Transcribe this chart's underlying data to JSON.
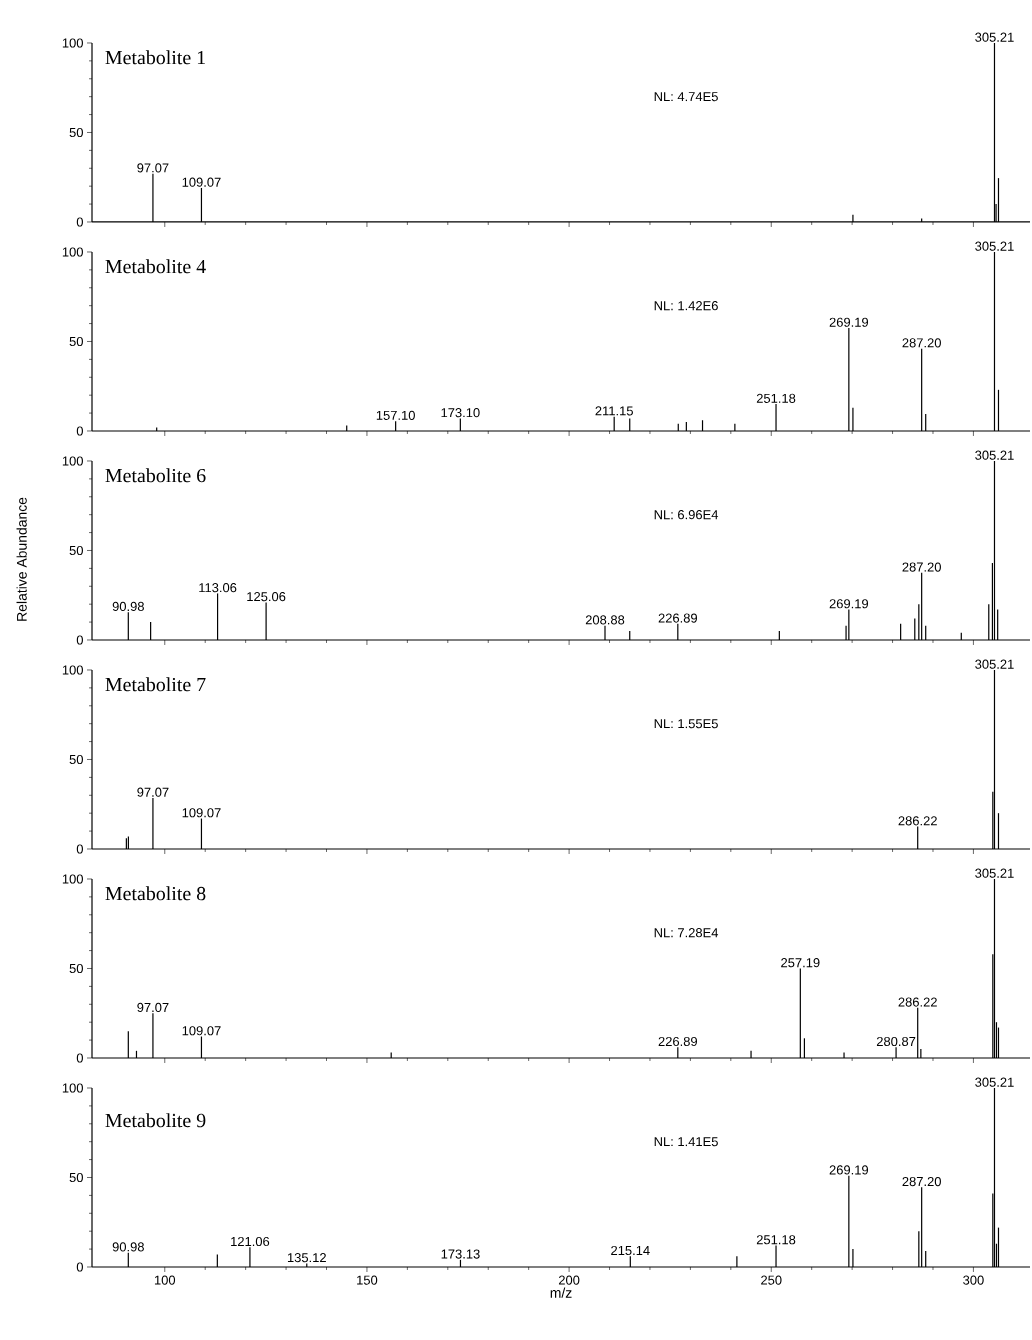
{
  "chart_data": [
    {
      "type": "bar",
      "title": "Metabolite 1",
      "color": "#000000",
      "xlim": [
        82,
        314
      ],
      "xticks": [
        100,
        150,
        200,
        250,
        300
      ],
      "ylim": [
        0,
        100
      ],
      "yticks": [
        0,
        50,
        100
      ],
      "tick_labels": "y",
      "x": [
        97.07,
        109.07,
        270.2,
        287.2,
        305.21,
        305.6,
        306.2
      ],
      "values": [
        27,
        19,
        4,
        2,
        100,
        10,
        24.5
      ],
      "annotations": [
        "NL: 4.74E5",
        {
          "text": "97.07",
          "x": 97.07,
          "y": 27
        },
        {
          "text": "109.07",
          "x": 109.07,
          "y": 19
        },
        {
          "text": "305.21",
          "x": 305.21,
          "y": 100
        }
      ]
    },
    {
      "type": "bar",
      "title": "Metabolite 4",
      "color": "#000000",
      "xlim": [
        82,
        314
      ],
      "xticks": [
        100,
        150,
        200,
        250,
        300
      ],
      "ylim": [
        0,
        100
      ],
      "yticks": [
        0,
        50,
        100
      ],
      "tick_labels": "y",
      "x": [
        98,
        145,
        157.1,
        173.1,
        211.15,
        215,
        227,
        229,
        233,
        241,
        251.18,
        269.19,
        270.2,
        287.2,
        288.2,
        305.21,
        306.2
      ],
      "values": [
        2,
        3,
        5.5,
        7,
        8,
        7,
        4,
        5,
        6,
        4,
        15,
        57.5,
        13,
        46,
        9.5,
        100,
        23
      ],
      "annotations": [
        "NL: 1.42E6",
        {
          "text": "157.10",
          "x": 157.1,
          "y": 5.5
        },
        {
          "text": "173.10",
          "x": 173.1,
          "y": 7
        },
        {
          "text": "211.15",
          "x": 211.15,
          "y": 8
        },
        {
          "text": "251.18",
          "x": 251.18,
          "y": 15
        },
        {
          "text": "269.19",
          "x": 269.19,
          "y": 57.5
        },
        {
          "text": "287.20",
          "x": 287.2,
          "y": 46
        },
        {
          "text": "305.21",
          "x": 305.21,
          "y": 100
        }
      ]
    },
    {
      "type": "bar",
      "title": "Metabolite 6",
      "ylabel": "Relative Abundance",
      "color": "#000000",
      "xlim": [
        82,
        314
      ],
      "xticks": [
        100,
        150,
        200,
        250,
        300
      ],
      "ylim": [
        0,
        100
      ],
      "yticks": [
        0,
        50,
        100
      ],
      "tick_labels": "y",
      "x": [
        90.98,
        96.5,
        113.06,
        125.06,
        208.88,
        215,
        226.89,
        252,
        268.5,
        269.19,
        282,
        285.5,
        286.5,
        287.2,
        288.2,
        297,
        303.8,
        304.7,
        305.21,
        306
      ],
      "values": [
        15.5,
        10,
        26,
        21,
        8,
        5,
        9,
        5,
        8,
        17,
        9,
        12,
        20,
        37.5,
        8,
        4,
        20,
        43,
        100,
        17
      ],
      "annotations": [
        "NL: 6.96E4",
        {
          "text": "90.98",
          "x": 90.98,
          "y": 15.5
        },
        {
          "text": "113.06",
          "x": 113.06,
          "y": 26
        },
        {
          "text": "125.06",
          "x": 125.06,
          "y": 21
        },
        {
          "text": "208.88",
          "x": 208.88,
          "y": 8
        },
        {
          "text": "226.89",
          "x": 226.89,
          "y": 9
        },
        {
          "text": "269.19",
          "x": 269.19,
          "y": 17
        },
        {
          "text": "287.20",
          "x": 287.2,
          "y": 37.5
        },
        {
          "text": "305.21",
          "x": 305.21,
          "y": 100
        }
      ]
    },
    {
      "type": "bar",
      "title": "Metabolite 7",
      "color": "#000000",
      "xlim": [
        82,
        314
      ],
      "xticks": [
        100,
        150,
        200,
        250,
        300
      ],
      "ylim": [
        0,
        100
      ],
      "yticks": [
        0,
        50,
        100
      ],
      "tick_labels": "y",
      "x": [
        90.5,
        91,
        97.07,
        109.07,
        286.22,
        304.8,
        305.21,
        306.2
      ],
      "values": [
        6,
        7,
        28.5,
        17,
        12.5,
        32,
        100,
        20
      ],
      "annotations": [
        "NL: 1.55E5",
        {
          "text": "97.07",
          "x": 97.07,
          "y": 28.5
        },
        {
          "text": "109.07",
          "x": 109.07,
          "y": 17
        },
        {
          "text": "286.22",
          "x": 286.22,
          "y": 12.5
        },
        {
          "text": "305.21",
          "x": 305.21,
          "y": 100
        }
      ]
    },
    {
      "type": "bar",
      "title": "Metabolite 8",
      "color": "#000000",
      "xlim": [
        82,
        314
      ],
      "xticks": [
        100,
        150,
        200,
        250,
        300
      ],
      "ylim": [
        0,
        100
      ],
      "yticks": [
        0,
        50,
        100
      ],
      "tick_labels": "y",
      "x": [
        90.98,
        93,
        97.07,
        109.07,
        156,
        226.89,
        245,
        257.19,
        258.2,
        268,
        280.87,
        286.22,
        287,
        304.8,
        305.21,
        305.7,
        306.2
      ],
      "values": [
        15,
        4,
        25,
        12,
        3,
        6,
        4,
        50,
        11,
        3,
        6,
        28,
        5,
        58,
        100,
        20,
        17
      ],
      "annotations": [
        "NL: 7.28E4",
        {
          "text": "97.07",
          "x": 97.07,
          "y": 25
        },
        {
          "text": "109.07",
          "x": 109.07,
          "y": 12
        },
        {
          "text": "226.89",
          "x": 226.89,
          "y": 6
        },
        {
          "text": "257.19",
          "x": 257.19,
          "y": 50
        },
        {
          "text": "280.87",
          "x": 280.87,
          "y": 6
        },
        {
          "text": "286.22",
          "x": 286.22,
          "y": 28
        },
        {
          "text": "305.21",
          "x": 305.21,
          "y": 100
        }
      ]
    },
    {
      "type": "bar",
      "title": "Metabolite 9",
      "xlabel": "m/z",
      "color": "#000000",
      "xlim": [
        82,
        314
      ],
      "xticks": [
        100,
        150,
        200,
        250,
        300
      ],
      "ylim": [
        0,
        100
      ],
      "yticks": [
        0,
        50,
        100
      ],
      "x": [
        90.98,
        113,
        121.06,
        135.12,
        173.13,
        215.14,
        241.5,
        251.18,
        269.19,
        270.2,
        286.5,
        287.2,
        288.2,
        304.8,
        305.21,
        305.7,
        306.2
      ],
      "values": [
        8,
        7,
        11,
        2,
        4,
        6,
        6,
        12,
        51,
        10,
        20,
        44.5,
        9,
        41,
        100,
        13,
        22
      ],
      "annotations": [
        "NL: 1.41E5",
        {
          "text": "90.98",
          "x": 90.98,
          "y": 8
        },
        {
          "text": "121.06",
          "x": 121.06,
          "y": 11
        },
        {
          "text": "135.12",
          "x": 135.12,
          "y": 2
        },
        {
          "text": "173.13",
          "x": 173.13,
          "y": 4
        },
        {
          "text": "215.14",
          "x": 215.14,
          "y": 6
        },
        {
          "text": "251.18",
          "x": 251.18,
          "y": 12
        },
        {
          "text": "269.19",
          "x": 269.19,
          "y": 51
        },
        {
          "text": "287.20",
          "x": 287.2,
          "y": 44.5
        },
        {
          "text": "305.21",
          "x": 305.21,
          "y": 100
        }
      ]
    }
  ]
}
